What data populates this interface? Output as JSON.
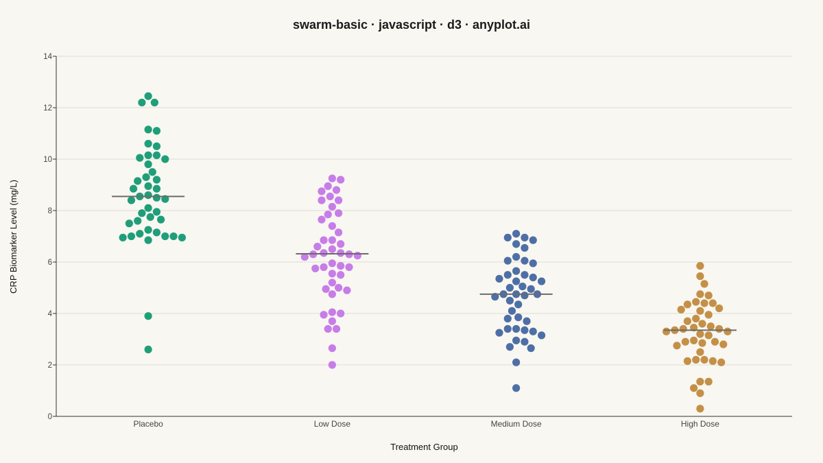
{
  "chart_data": {
    "type": "scatter",
    "subtype": "swarm",
    "title": "swarm-basic · javascript · d3 · anyplot.ai",
    "xlabel": "Treatment Group",
    "ylabel": "CRP Biomarker Level (mg/L)",
    "ylim": [
      0,
      14
    ],
    "yticks": [
      0,
      2,
      4,
      6,
      8,
      10,
      12,
      14
    ],
    "grid": true,
    "categories": [
      "Placebo",
      "Low Dose",
      "Medium Dose",
      "High Dose"
    ],
    "series": [
      {
        "category": "Placebo",
        "color": "#1f9e7a",
        "median": 8.55,
        "values": [
          12.45,
          12.2,
          12.2,
          11.15,
          11.1,
          10.6,
          10.5,
          10.15,
          10.15,
          10.05,
          10.0,
          9.8,
          9.5,
          9.3,
          9.2,
          9.15,
          8.95,
          8.85,
          8.85,
          8.6,
          8.55,
          8.5,
          8.45,
          8.4,
          8.1,
          7.95,
          7.9,
          7.75,
          7.65,
          7.6,
          7.5,
          7.25,
          7.15,
          7.1,
          7.0,
          7.0,
          7.0,
          6.95,
          6.95,
          6.85,
          3.9,
          2.6
        ]
      },
      {
        "category": "Low Dose",
        "color": "#c77de8",
        "median": 6.32,
        "values": [
          9.25,
          9.2,
          8.95,
          8.8,
          8.75,
          8.55,
          8.4,
          8.4,
          8.15,
          7.9,
          7.85,
          7.65,
          7.4,
          7.15,
          6.85,
          6.85,
          6.7,
          6.6,
          6.5,
          6.35,
          6.35,
          6.3,
          6.3,
          6.25,
          6.2,
          5.95,
          5.85,
          5.8,
          5.8,
          5.75,
          5.55,
          5.5,
          5.2,
          5.0,
          4.95,
          4.9,
          4.75,
          4.05,
          4.0,
          3.95,
          3.7,
          3.4,
          3.4,
          2.65,
          2.0
        ]
      },
      {
        "category": "Medium Dose",
        "color": "#4e6fa6",
        "median": 4.75,
        "values": [
          7.1,
          6.95,
          6.95,
          6.85,
          6.7,
          6.55,
          6.2,
          6.05,
          6.05,
          5.95,
          5.65,
          5.5,
          5.5,
          5.4,
          5.35,
          5.25,
          5.25,
          5.05,
          5.0,
          4.95,
          4.75,
          4.75,
          4.75,
          4.7,
          4.65,
          4.5,
          4.35,
          4.1,
          3.85,
          3.8,
          3.7,
          3.4,
          3.4,
          3.35,
          3.3,
          3.25,
          3.15,
          2.95,
          2.9,
          2.7,
          2.65,
          2.1,
          1.1
        ]
      },
      {
        "category": "High Dose",
        "color": "#c49048",
        "median": 3.35,
        "values": [
          5.85,
          5.45,
          5.15,
          4.75,
          4.7,
          4.45,
          4.4,
          4.4,
          4.35,
          4.2,
          4.15,
          4.1,
          3.95,
          3.8,
          3.7,
          3.6,
          3.5,
          3.45,
          3.4,
          3.4,
          3.35,
          3.3,
          3.3,
          3.2,
          3.15,
          2.95,
          2.9,
          2.9,
          2.85,
          2.8,
          2.75,
          2.5,
          2.2,
          2.2,
          2.15,
          2.15,
          2.1,
          1.35,
          1.35,
          1.1,
          0.9,
          0.3
        ]
      }
    ]
  }
}
